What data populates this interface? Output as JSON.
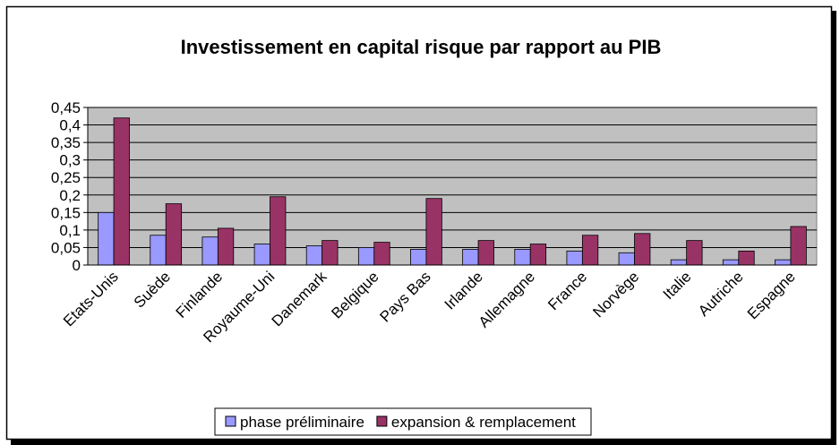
{
  "chart_data": {
    "type": "bar",
    "title": "Investissement en capital risque par rapport au PIB",
    "categories": [
      "Etats-Unis",
      "Suède",
      "Finlande",
      "Royaume-Uni",
      "Danemark",
      "Belgique",
      "Pays Bas",
      "Irlande",
      "Allemagne",
      "France",
      "Norvège",
      "Italie",
      "Autriche",
      "Espagne"
    ],
    "series": [
      {
        "name": "phase préliminaire",
        "color": "#9999ff",
        "values": [
          0.15,
          0.085,
          0.08,
          0.06,
          0.055,
          0.05,
          0.045,
          0.045,
          0.045,
          0.04,
          0.035,
          0.015,
          0.015,
          0.015
        ]
      },
      {
        "name": "expansion & remplacement",
        "color": "#993366",
        "values": [
          0.42,
          0.175,
          0.105,
          0.195,
          0.07,
          0.065,
          0.19,
          0.07,
          0.06,
          0.085,
          0.09,
          0.07,
          0.04,
          0.11
        ]
      }
    ],
    "ylim": [
      0,
      0.45
    ],
    "yticks": [
      0,
      {
        "value": 0.05,
        "label": "0,05"
      },
      {
        "value": 0.1,
        "label": "0,1"
      },
      {
        "value": 0.15,
        "label": "0,15"
      },
      {
        "value": 0.2,
        "label": "0,2"
      },
      {
        "value": 0.25,
        "label": "0,25"
      },
      {
        "value": 0.3,
        "label": "0,3"
      },
      {
        "value": 0.35,
        "label": "0,35"
      },
      {
        "value": 0.4,
        "label": "0,4"
      },
      {
        "value": 0.45,
        "label": "0,45"
      }
    ],
    "grid": true,
    "legend": "bottom"
  }
}
